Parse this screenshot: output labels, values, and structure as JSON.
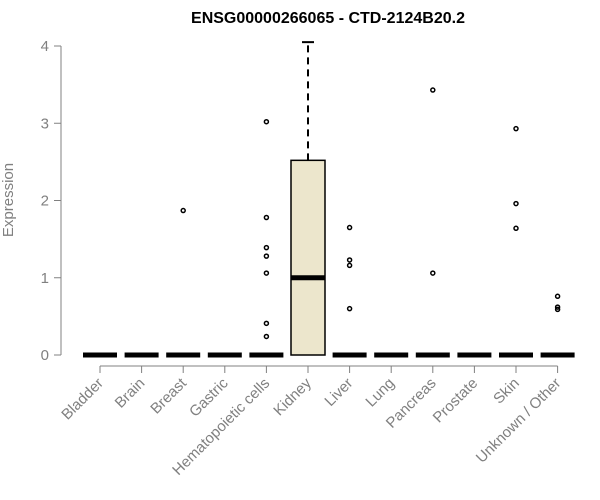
{
  "chart_data": {
    "type": "box",
    "title": "ENSG00000266065 - CTD-2124B20.2",
    "xlabel": "",
    "ylabel": "Expression",
    "ylim": [
      0,
      4
    ],
    "yticks": [
      "0",
      "1",
      "2",
      "3",
      "4"
    ],
    "grid": false,
    "legend": "none",
    "categories": [
      "Bladder",
      "Brain",
      "Breast",
      "Gastric",
      "Hematopoietic cells",
      "Kidney",
      "Liver",
      "Lung",
      "Pancreas",
      "Prostate",
      "Skin",
      "Unknown / Other"
    ],
    "boxes": [
      {
        "category": "Bladder",
        "min": 0,
        "q1": 0,
        "median": 0,
        "q3": 0,
        "max": 0,
        "outliers": []
      },
      {
        "category": "Brain",
        "min": 0,
        "q1": 0,
        "median": 0,
        "q3": 0,
        "max": 0,
        "outliers": []
      },
      {
        "category": "Breast",
        "min": 0,
        "q1": 0,
        "median": 0,
        "q3": 0,
        "max": 0,
        "outliers": [
          1.87
        ]
      },
      {
        "category": "Gastric",
        "min": 0,
        "q1": 0,
        "median": 0,
        "q3": 0,
        "max": 0,
        "outliers": []
      },
      {
        "category": "Hematopoietic cells",
        "min": 0,
        "q1": 0,
        "median": 0,
        "q3": 0,
        "max": 0,
        "outliers": [
          3.02,
          1.78,
          1.39,
          1.28,
          1.06,
          0.41,
          0.24
        ]
      },
      {
        "category": "Kidney",
        "min": 0,
        "q1": 0,
        "median": 1.0,
        "q3": 2.52,
        "max": 4.05,
        "outliers": []
      },
      {
        "category": "Liver",
        "min": 0,
        "q1": 0,
        "median": 0,
        "q3": 0,
        "max": 0,
        "outliers": [
          1.65,
          1.23,
          1.16,
          0.6
        ]
      },
      {
        "category": "Lung",
        "min": 0,
        "q1": 0,
        "median": 0,
        "q3": 0,
        "max": 0,
        "outliers": []
      },
      {
        "category": "Pancreas",
        "min": 0,
        "q1": 0,
        "median": 0,
        "q3": 0,
        "max": 0,
        "outliers": [
          3.43,
          1.06
        ]
      },
      {
        "category": "Prostate",
        "min": 0,
        "q1": 0,
        "median": 0,
        "q3": 0,
        "max": 0,
        "outliers": []
      },
      {
        "category": "Skin",
        "min": 0,
        "q1": 0,
        "median": 0,
        "q3": 0,
        "max": 0,
        "outliers": [
          2.93,
          1.96,
          1.64
        ]
      },
      {
        "category": "Unknown / Other",
        "min": 0,
        "q1": 0,
        "median": 0,
        "q3": 0,
        "max": 0,
        "outliers": [
          0.76,
          0.62,
          0.59
        ]
      }
    ],
    "colors": {
      "box_fill": "#ece6cc",
      "axis_gray": "#808080",
      "ink": "#000000"
    }
  }
}
